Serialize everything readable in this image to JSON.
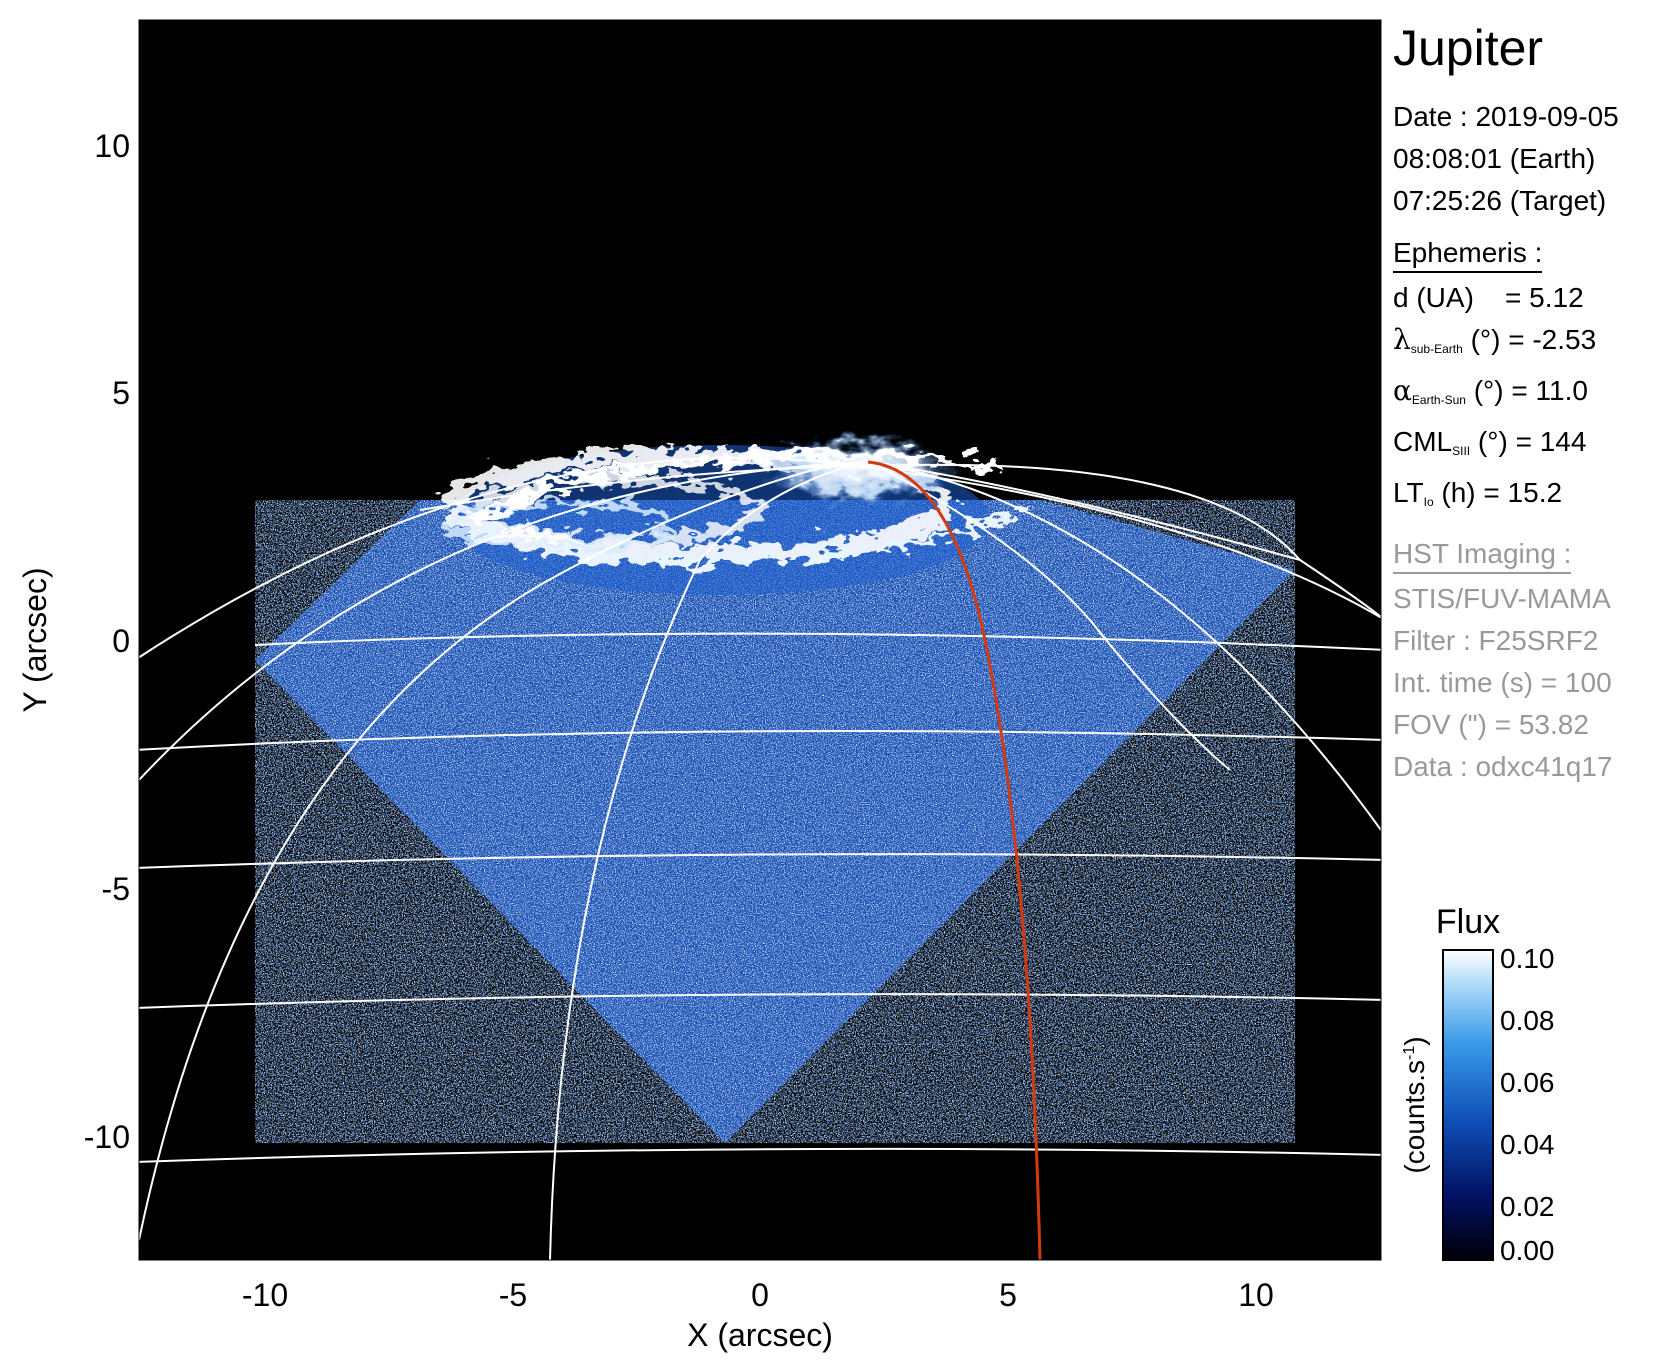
{
  "axes": {
    "xlabel": "X (arcsec)",
    "ylabel": "Y (arcsec)",
    "xticks": [
      -10,
      -5,
      0,
      5,
      10
    ],
    "yticks": [
      10,
      5,
      0,
      -5,
      -10
    ],
    "xlim": [
      -12.5,
      12.5
    ],
    "ylim": [
      -12.5,
      12.5
    ]
  },
  "info": {
    "title": "Jupiter",
    "date": "Date : 2019-09-05",
    "time_earth": "08:08:01 (Earth)",
    "time_target": "07:25:26 (Target)",
    "ephemeris_header": "Ephemeris :",
    "ephemeris": {
      "d": {
        "label": "d (UA)",
        "value": "= 5.12"
      },
      "lambda": {
        "symbol": "λ",
        "sub": "sub-Earth",
        "unit": "(°)",
        "value": "= -2.53"
      },
      "alpha": {
        "symbol": "α",
        "sub": "Earth-Sun",
        "unit": "(°)",
        "value": "= 11.0"
      },
      "cml": {
        "symbol": "CML",
        "sub": "SIII",
        "unit": "(°)",
        "value": "= 144"
      },
      "lt": {
        "symbol": "LT",
        "sub": "Io",
        "unit": "(h)",
        "value": "= 15.2"
      }
    },
    "hst_header": "HST Imaging :",
    "hst": [
      "STIS/FUV-MAMA",
      "Filter : F25SRF2",
      "Int. time (s) = 100",
      "FOV (\") = 53.82",
      "Data : odxc41q17"
    ]
  },
  "colorbar": {
    "title": "Flux",
    "label": "(counts.s",
    "label_sup": "-1",
    "label_close": ")",
    "ticks": [
      "0.10",
      "0.08",
      "0.06",
      "0.04",
      "0.02",
      "0.00"
    ],
    "range": [
      0.0,
      0.1
    ],
    "colors": [
      "#000008",
      "#001060",
      "#0f4fb8",
      "#3a9ae8",
      "#a8d8f8",
      "#ffffff"
    ]
  },
  "colors": {
    "background": "#000000",
    "grid": "#ffffff",
    "footprint": "#d43a0e",
    "image_blue": "#1e5ecf"
  }
}
